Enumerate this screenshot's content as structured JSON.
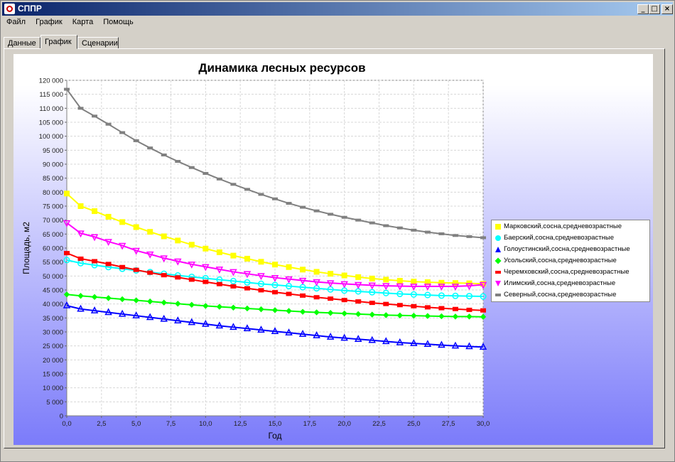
{
  "window": {
    "title": "СППР"
  },
  "menu": [
    "Файл",
    "График",
    "Карта",
    "Помощь"
  ],
  "tabs": [
    {
      "label": "Данные",
      "active": false
    },
    {
      "label": "График",
      "active": true
    },
    {
      "label": "Сценарии",
      "active": false
    }
  ],
  "chart_data": {
    "type": "line",
    "title": "Динамика лесных ресурсов",
    "xlabel": "Год",
    "ylabel": "Площадь, м2",
    "xlim": [
      0,
      30
    ],
    "ylim": [
      0,
      120000
    ],
    "grid": true,
    "legend_position": "right",
    "x_ticks": [
      "0,0",
      "2,5",
      "5,0",
      "7,5",
      "10,0",
      "12,5",
      "15,0",
      "17,5",
      "20,0",
      "22,5",
      "25,0",
      "27,5",
      "30,0"
    ],
    "y_ticks": [
      "0",
      "5 000",
      "10 000",
      "15 000",
      "20 000",
      "25 000",
      "30 000",
      "35 000",
      "40 000",
      "45 000",
      "50 000",
      "55 000",
      "60 000",
      "65 000",
      "70 000",
      "75 000",
      "80 000",
      "85 000",
      "90 000",
      "95 000",
      "100 000",
      "105 000",
      "110 000",
      "115 000",
      "120 000"
    ],
    "x": [
      0,
      1,
      2,
      3,
      4,
      5,
      6,
      7,
      8,
      9,
      10,
      11,
      12,
      13,
      14,
      15,
      16,
      17,
      18,
      19,
      20,
      21,
      22,
      23,
      24,
      25,
      26,
      27,
      28,
      29,
      30
    ],
    "series": [
      {
        "name": "Марковский,сосна,средневозрастные",
        "color": "#ffff00",
        "marker": "square",
        "values": [
          79500,
          75000,
          73200,
          71200,
          69300,
          67500,
          65800,
          64200,
          62700,
          61200,
          59800,
          58500,
          57300,
          56200,
          55100,
          54100,
          53200,
          52300,
          51500,
          50800,
          50200,
          49600,
          49100,
          48700,
          48300,
          48000,
          47800,
          47600,
          47500,
          47400,
          47200
        ]
      },
      {
        "name": "Баерский,сосна,средневозрастные",
        "color": "#00ffff",
        "marker": "circle",
        "values": [
          55700,
          54600,
          53900,
          53200,
          52600,
          52000,
          51400,
          50800,
          50200,
          49700,
          49200,
          48700,
          48200,
          47700,
          47200,
          46800,
          46400,
          46000,
          45600,
          45200,
          44800,
          44500,
          44200,
          43900,
          43600,
          43400,
          43200,
          43000,
          42900,
          42800,
          42700
        ]
      },
      {
        "name": "Голоустинский,сосна,средневозрастные",
        "color": "#0000ff",
        "marker": "triangle-up",
        "values": [
          39400,
          38200,
          37600,
          37000,
          36400,
          35800,
          35200,
          34600,
          34000,
          33400,
          32800,
          32200,
          31700,
          31200,
          30700,
          30200,
          29700,
          29200,
          28700,
          28200,
          27800,
          27400,
          27000,
          26600,
          26200,
          25900,
          25600,
          25300,
          25000,
          24800,
          24600
        ]
      },
      {
        "name": "Усольский,сосна,средневозрастные",
        "color": "#00ff00",
        "marker": "diamond",
        "values": [
          43400,
          42900,
          42500,
          42100,
          41700,
          41300,
          40900,
          40500,
          40100,
          39700,
          39300,
          39000,
          38700,
          38400,
          38100,
          37800,
          37500,
          37200,
          37000,
          36800,
          36600,
          36400,
          36200,
          36000,
          35900,
          35800,
          35700,
          35600,
          35500,
          35500,
          35400
        ]
      },
      {
        "name": "Черемховский,сосна,средневозрастные",
        "color": "#ff0000",
        "marker": "rect",
        "values": [
          58200,
          56200,
          55300,
          54300,
          53200,
          52200,
          51200,
          50300,
          49500,
          48700,
          47900,
          47100,
          46300,
          45600,
          44900,
          44200,
          43600,
          43000,
          42400,
          41900,
          41400,
          40900,
          40400,
          40000,
          39600,
          39200,
          38800,
          38500,
          38200,
          37900,
          37700
        ]
      },
      {
        "name": "Илимский,сосна,средневозрастные",
        "color": "#ff00ff",
        "marker": "triangle-down",
        "values": [
          69000,
          65300,
          64000,
          62300,
          60900,
          59100,
          57800,
          56400,
          55300,
          54200,
          53300,
          52400,
          51500,
          50800,
          50100,
          49400,
          48900,
          48400,
          47900,
          47500,
          47200,
          46900,
          46700,
          46500,
          46400,
          46300,
          46300,
          46300,
          46300,
          46500,
          46900
        ]
      },
      {
        "name": "Северный,сосна,средневозрастные",
        "color": "#808080",
        "marker": "hline",
        "values": [
          116800,
          110000,
          107200,
          104300,
          101300,
          98400,
          95800,
          93300,
          91000,
          88800,
          86700,
          84700,
          82800,
          81000,
          79200,
          77600,
          76000,
          74600,
          73300,
          72100,
          71000,
          70000,
          69000,
          68000,
          67200,
          66400,
          65700,
          65100,
          64500,
          64100,
          63700
        ]
      }
    ]
  }
}
